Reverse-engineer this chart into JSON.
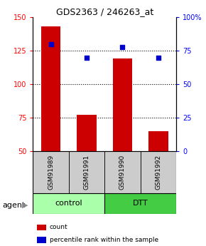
{
  "title": "GDS2363 / 246263_at",
  "samples": [
    "GSM91989",
    "GSM91991",
    "GSM91990",
    "GSM91992"
  ],
  "bar_values": [
    143,
    77,
    119,
    65
  ],
  "percentile_values": [
    80,
    70,
    78,
    70
  ],
  "bar_color": "#cc0000",
  "dot_color": "#0000cc",
  "ylim_left": [
    50,
    150
  ],
  "ylim_right": [
    0,
    100
  ],
  "yticks_left": [
    50,
    75,
    100,
    125,
    150
  ],
  "yticks_right": [
    0,
    25,
    50,
    75,
    100
  ],
  "ytick_labels_right": [
    "0",
    "25",
    "50",
    "75",
    "100%"
  ],
  "groups": [
    {
      "label": "control",
      "indices": [
        0,
        1
      ],
      "color": "#aaffaa"
    },
    {
      "label": "DTT",
      "indices": [
        2,
        3
      ],
      "color": "#44cc44"
    }
  ],
  "agent_label": "agent",
  "legend": [
    {
      "label": "count",
      "color": "#cc0000"
    },
    {
      "label": "percentile rank within the sample",
      "color": "#0000cc"
    }
  ],
  "sample_box_color": "#cccccc",
  "bar_width": 0.55
}
